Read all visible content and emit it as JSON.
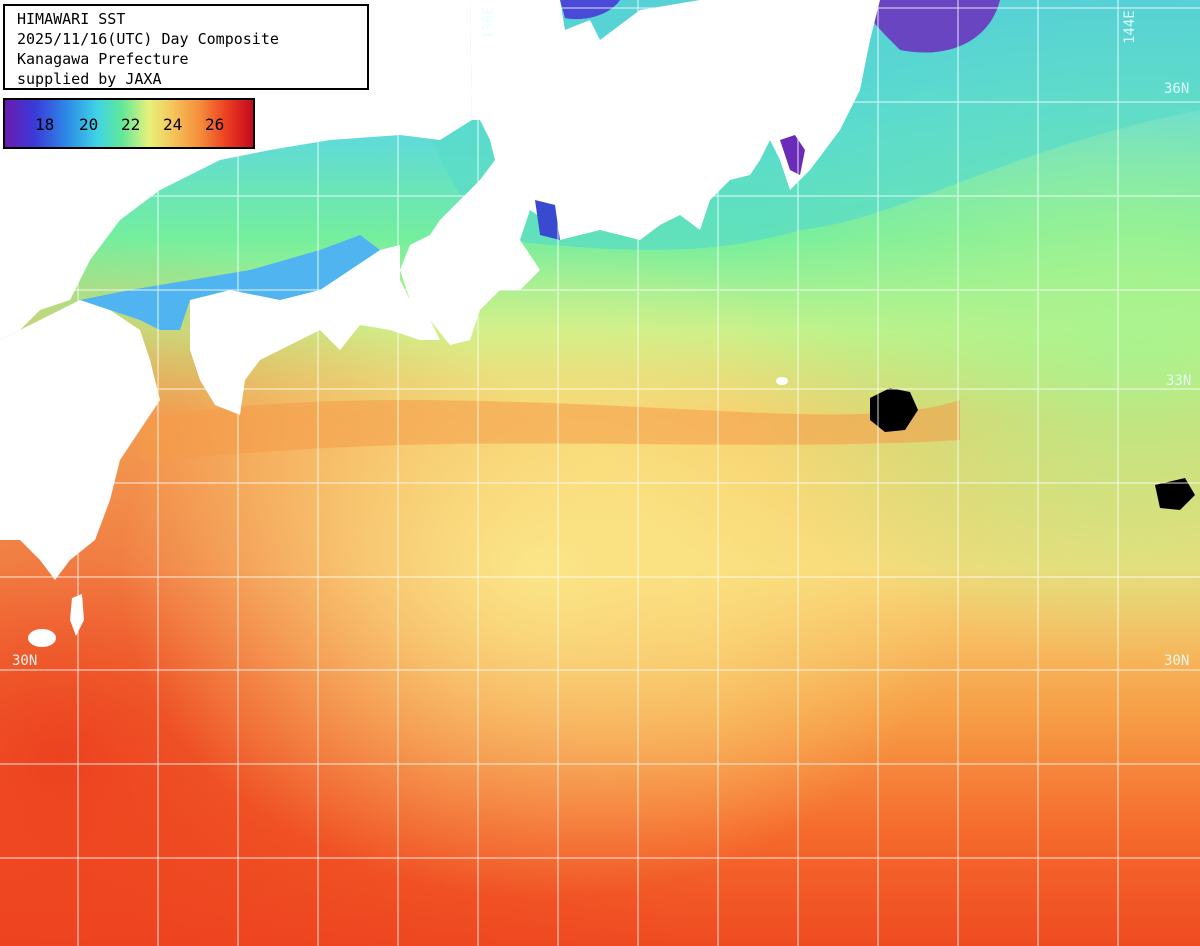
{
  "info": {
    "line1": "HIMAWARI SST",
    "line2": "2025/11/16(UTC) Day Composite",
    "line3": "Kanagawa Prefecture",
    "line4": "supplied by JAXA"
  },
  "legend": {
    "ticks": [
      "18",
      "20",
      "22",
      "24",
      "26"
    ],
    "colors": [
      "#6a1bb0",
      "#2d8ae6",
      "#5fe89a",
      "#e8f27a",
      "#f58a3a",
      "#c40a20"
    ]
  },
  "grid_labels": {
    "lon_136": "136E",
    "lon_144": "144E",
    "lat_36": "36N",
    "lat_33": "33N",
    "lat_30_left": "30N",
    "lat_30_right": "30N"
  }
}
